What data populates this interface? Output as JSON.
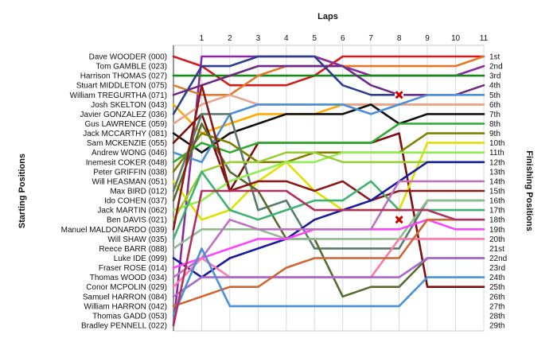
{
  "chart_data": {
    "type": "line",
    "title": "",
    "xlabel": "Laps",
    "ylabel_left": "Starting Positions",
    "ylabel_right": "Finishing Positions",
    "x": [
      0,
      1,
      2,
      3,
      4,
      5,
      6,
      7,
      8,
      9,
      10,
      11
    ],
    "x_tick_labels": [
      "1",
      "2",
      "3",
      "4",
      "5",
      "6",
      "7",
      "8",
      "9",
      "10",
      "11"
    ],
    "y_reversed": true,
    "ylim": [
      1,
      29
    ],
    "grid": "vertical",
    "legend": "none",
    "start_labels": [
      "Dave WOODER (000)",
      "Tom GAMBLE (023)",
      "Harrison THOMAS (027)",
      "Stuart MIDDLETON (075)",
      "William TREGURTHA (071)",
      "Josh SKELTON (043)",
      "Javier GONZALEZ (036)",
      "Gus LAWRENCE (059)",
      "Jack MCCARTHY (081)",
      "Sam MCKENZIE (055)",
      "Andrew WONG (046)",
      "Inemesit COKER (048)",
      "Peter GRIFFIN (038)",
      "Will HEASMAN (051)",
      "Max BIRD (012)",
      "Ido COHEN (037)",
      "Jack MARTIN (062)",
      "Ben DAVIS (021)",
      "Manuel MALDONARDO (039)",
      "Will SHAW (035)",
      "Reece BARR (088)",
      "Luke IDE (099)",
      "Fraser ROSE (014)",
      "Thomas WOOD (034)",
      "Conor MCPOLIN (029)",
      "Samuel HARRON (084)",
      "William HARRON (042)",
      "Thomas GADD (053)",
      "Bradley PENNELL (022)"
    ],
    "finish_labels": [
      "1st",
      "2nd",
      "3rd",
      "4th",
      "5th",
      "6th",
      "7th",
      "8th",
      "9th",
      "10th",
      "11th",
      "12th",
      "13th",
      "14th",
      "15th",
      "16th",
      "17th",
      "18th",
      "19th",
      "20th",
      "21st",
      "22nd",
      "23rd",
      "24th",
      "25th",
      "26th",
      "27th",
      "28th",
      "29th"
    ],
    "retired_markers": [
      {
        "x": 8,
        "y": 5,
        "color": "#cc0000"
      },
      {
        "x": 8,
        "y": 18,
        "color": "#cc0000"
      }
    ],
    "series": [
      {
        "color": "#d01c1c",
        "values": [
          1,
          2,
          4,
          4,
          4,
          3,
          1,
          1,
          1,
          1,
          1,
          1
        ]
      },
      {
        "color": "#8a2aa0",
        "values": [
          29,
          1,
          1,
          1,
          1,
          1,
          2,
          3,
          3,
          3,
          3,
          2
        ]
      },
      {
        "color": "#178a17",
        "values": [
          3,
          3,
          3,
          3,
          3,
          3,
          3,
          3,
          3,
          3,
          3,
          3
        ]
      },
      {
        "color": "#e07a2a",
        "values": [
          4,
          5,
          5,
          3,
          2,
          2,
          2,
          2,
          2,
          2,
          2,
          1
        ]
      },
      {
        "color": "#6b2a86",
        "values": [
          5,
          4,
          3,
          2,
          2,
          2,
          2,
          4,
          5,
          5,
          5,
          4
        ]
      },
      {
        "color": "#ffaa00",
        "values": [
          6,
          9,
          8,
          7,
          7,
          7,
          6,
          6,
          6,
          6,
          6,
          6
        ]
      },
      {
        "color": "#2d3e8c",
        "values": [
          7,
          2,
          2,
          1,
          1,
          1,
          4,
          5,
          5,
          null,
          null,
          null
        ]
      },
      {
        "color": "#e8a48c",
        "values": [
          8,
          6,
          5,
          6,
          6,
          6,
          6,
          6,
          6,
          6,
          6,
          6
        ]
      },
      {
        "color": "#111111",
        "values": [
          9,
          11,
          9,
          8,
          7,
          7,
          7,
          6,
          8,
          7,
          7,
          7
        ]
      },
      {
        "color": "#7a0f0f",
        "values": [
          10,
          7,
          15,
          10,
          10,
          10,
          10,
          10,
          9,
          25,
          25,
          25
        ]
      },
      {
        "color": "#4a90d8",
        "values": [
          11,
          12,
          7,
          6,
          6,
          6,
          6,
          7,
          6,
          5,
          5,
          5
        ]
      },
      {
        "color": "#2eaa2e",
        "values": [
          12,
          10,
          11,
          10,
          10,
          10,
          10,
          10,
          8,
          8,
          8,
          8
        ]
      },
      {
        "color": "#808000",
        "values": [
          13,
          9,
          10,
          12,
          12,
          11,
          11,
          11,
          11,
          9,
          9,
          9
        ]
      },
      {
        "color": "#e0e000",
        "values": [
          14,
          18,
          17,
          14,
          12,
          15,
          17,
          17,
          17,
          10,
          10,
          10
        ]
      },
      {
        "color": "#5a7a6a",
        "values": [
          15,
          7,
          7,
          17,
          16,
          21,
          21,
          21,
          21,
          16,
          16,
          16
        ]
      },
      {
        "color": "#556b2f",
        "values": [
          16,
          8,
          13,
          15,
          20,
          20,
          26,
          25,
          25,
          22,
          22,
          22
        ]
      },
      {
        "color": "#90ee50",
        "values": [
          17,
          16,
          14,
          13,
          12,
          12,
          11,
          11,
          11,
          11,
          11,
          11
        ]
      },
      {
        "color": "#9acd32",
        "values": [
          18,
          13,
          12,
          12,
          11,
          11,
          12,
          12,
          12,
          12,
          12,
          12
        ]
      },
      {
        "color": "#8b1a1a",
        "values": [
          19,
          4,
          15,
          14,
          14,
          15,
          14,
          16,
          15,
          15,
          15,
          15
        ]
      },
      {
        "color": "#3cb371",
        "values": [
          20,
          13,
          17,
          18,
          17,
          16,
          16,
          14,
          17,
          17,
          17,
          17
        ]
      },
      {
        "color": "#8fbc8f",
        "values": [
          21,
          19,
          19,
          19,
          20,
          20,
          20,
          20,
          20,
          16,
          16,
          16
        ]
      },
      {
        "color": "#1a1aa0",
        "values": [
          22,
          24,
          22,
          21,
          20,
          18,
          17,
          16,
          14,
          12,
          12,
          12
        ]
      },
      {
        "color": "#ff44ff",
        "values": [
          23,
          22,
          21,
          20,
          20,
          19,
          19,
          19,
          19,
          18,
          19,
          19
        ]
      },
      {
        "color": "#c070c0",
        "values": [
          24,
          22,
          18,
          19,
          19,
          19,
          19,
          19,
          14,
          14,
          14,
          14
        ]
      },
      {
        "color": "#ff77aa",
        "values": [
          25,
          22,
          24,
          24,
          24,
          24,
          24,
          24,
          20,
          20,
          20,
          20
        ]
      },
      {
        "color": "#aa66cc",
        "values": [
          26,
          24,
          24,
          24,
          24,
          24,
          24,
          24,
          24,
          22,
          22,
          22
        ]
      },
      {
        "color": "#cc6633",
        "values": [
          27,
          26,
          25,
          25,
          23,
          22,
          22,
          22,
          22,
          18,
          18,
          18
        ]
      },
      {
        "color": "#4a90d8",
        "values": [
          28,
          21,
          27,
          27,
          27,
          27,
          27,
          27,
          27,
          24,
          24,
          24
        ]
      },
      {
        "color": "#b03060",
        "values": [
          29,
          15,
          15,
          15,
          15,
          17,
          17,
          17,
          17,
          17,
          18,
          18
        ]
      }
    ]
  }
}
